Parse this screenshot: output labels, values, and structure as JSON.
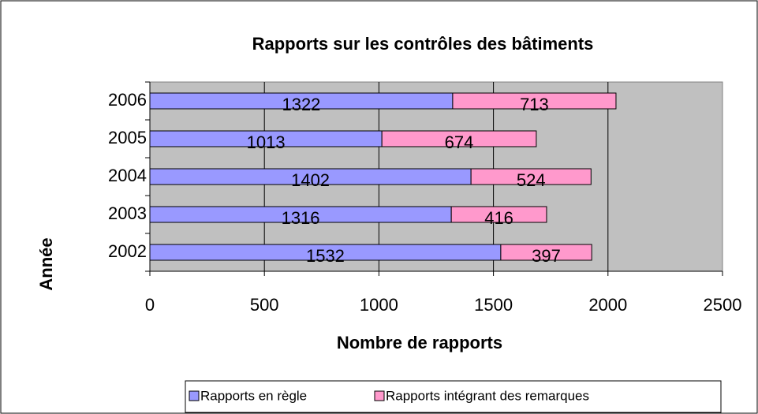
{
  "chart_data": {
    "type": "stacked-barh",
    "title": "Rapports sur les contrôles des bâtiments",
    "x_label": "Nombre de rapports",
    "y_label": "Année",
    "categories": [
      "2002",
      "2003",
      "2004",
      "2005",
      "2006"
    ],
    "series": [
      {
        "name": "Rapports en règle",
        "color": "#9999ff",
        "values": [
          1532,
          1316,
          1402,
          1013,
          1322
        ]
      },
      {
        "name": "Rapports intégrant des remarques",
        "color": "#ff99cc",
        "values": [
          397,
          416,
          524,
          674,
          713
        ]
      }
    ],
    "xlim": [
      0,
      2500
    ],
    "xticks": [
      0,
      500,
      1000,
      1500,
      2000,
      2500
    ],
    "grid": true,
    "legend": "bottom",
    "plot_background": "#c0c0c0"
  }
}
